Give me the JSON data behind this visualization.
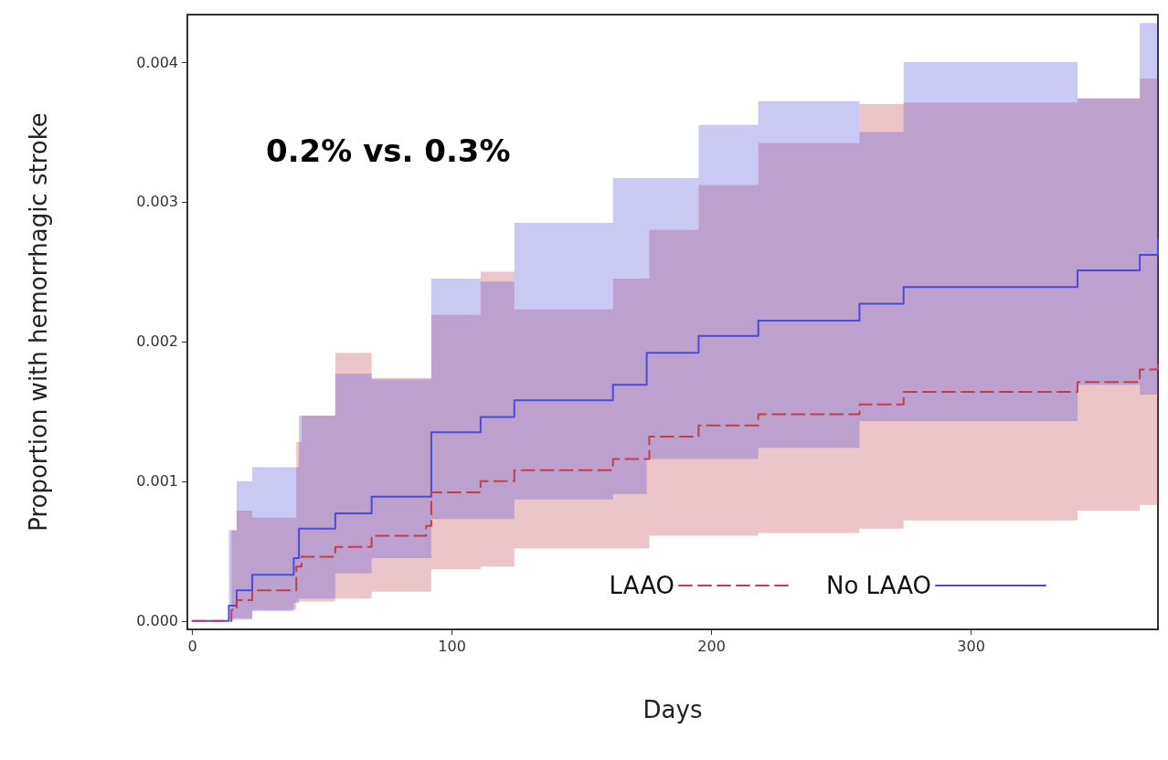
{
  "chart_data": {
    "type": "step",
    "xlabel": "Days",
    "ylabel": "Proportion with hemorrhagic stroke",
    "annotations": [
      "0.2% vs. 0.3%"
    ],
    "xlim": [
      -2,
      372
    ],
    "xticks": [
      0,
      100,
      200,
      300
    ],
    "ylim": [
      -6e-05,
      0.00434
    ],
    "yticks": [
      {
        "value": 0,
        "label": "0.000"
      },
      {
        "value": 0.001,
        "label": "0.001"
      },
      {
        "value": 0.002,
        "label": "0.002"
      },
      {
        "value": 0.003,
        "label": "0.003"
      },
      {
        "value": 0.004,
        "label": "0.004"
      }
    ],
    "grid": false,
    "legend": "bottom right",
    "marker": "none",
    "series": [
      {
        "name": "LAAO",
        "color": "#c0404a",
        "line_style": "dashed",
        "x": [
          0,
          15,
          17,
          23,
          40,
          42,
          55,
          69,
          90,
          92,
          111,
          124,
          162,
          176,
          195,
          218,
          257,
          274,
          341,
          365,
          372
        ],
        "values": [
          0,
          8e-05,
          0.00015,
          0.00022,
          0.00039,
          0.00046,
          0.00053,
          0.00061,
          0.00068,
          0.00092,
          0.001,
          0.00108,
          0.00116,
          0.00132,
          0.0014,
          0.00148,
          0.00155,
          0.00164,
          0.00171,
          0.0018,
          0.00187
        ],
        "upper": [
          0,
          0.00065,
          0.00079,
          0.00074,
          0.00128,
          0.00147,
          0.00192,
          0.00174,
          0.00174,
          0.00219,
          0.0025,
          0.00223,
          0.00245,
          0.0028,
          0.00312,
          0.00342,
          0.0037,
          0.00371,
          0.00374,
          0.00388,
          0.00388
        ],
        "lower": [
          0,
          2e-05,
          2e-05,
          8e-05,
          0.00014,
          0.00014,
          0.00016,
          0.00021,
          0.00021,
          0.00037,
          0.00039,
          0.00052,
          0.00052,
          0.00061,
          0.00061,
          0.00063,
          0.00066,
          0.00072,
          0.00079,
          0.00083,
          0.00083
        ]
      },
      {
        "name": "No LAAO",
        "color": "#4b4bdb",
        "line_style": "solid",
        "x": [
          0,
          14,
          17,
          23,
          39,
          41,
          55,
          69,
          92,
          111,
          124,
          162,
          175,
          195,
          218,
          257,
          274,
          341,
          365,
          372
        ],
        "values": [
          0,
          0.00011,
          0.00022,
          0.00033,
          0.00045,
          0.00066,
          0.00077,
          0.00089,
          0.00135,
          0.00146,
          0.00158,
          0.00169,
          0.00192,
          0.00204,
          0.00215,
          0.00227,
          0.00239,
          0.00251,
          0.00262,
          0.00273
        ],
        "upper": [
          0,
          0.00065,
          0.001,
          0.0011,
          0.0011,
          0.00147,
          0.00177,
          0.00173,
          0.00245,
          0.00243,
          0.00285,
          0.00317,
          0.00317,
          0.00355,
          0.00372,
          0.0035,
          0.004,
          0.00374,
          0.00428,
          0.00428
        ],
        "lower": [
          0,
          1e-05,
          1e-05,
          7e-05,
          0.00013,
          0.00016,
          0.00034,
          0.00045,
          0.00073,
          0.00073,
          0.00087,
          0.00091,
          0.00116,
          0.00116,
          0.00124,
          0.00143,
          0.00143,
          0.00169,
          0.00162,
          0.00162
        ]
      }
    ]
  }
}
